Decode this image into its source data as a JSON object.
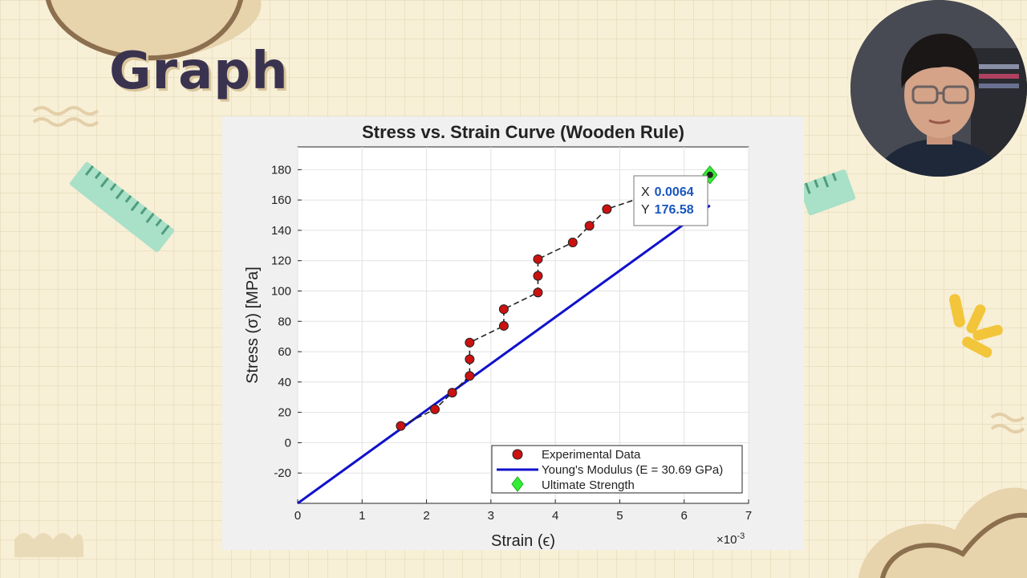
{
  "slide": {
    "title": "Graph"
  },
  "colors": {
    "background": "#f7efd6",
    "title_text": "#3a3350",
    "accent_mint": "#a8e0c8",
    "accent_yellow": "#f2c53a",
    "accent_tan": "#e7d3ac",
    "experimental_marker": "#cc1111",
    "youngs_line": "#1111cc",
    "ultimate_marker": "#33ee33"
  },
  "chart_data": {
    "type": "scatter",
    "title": "Stress vs. Strain Curve (Wooden Rule)",
    "xlabel": "Strain (ϵ)",
    "ylabel": "Stress (σ) [MPa]",
    "x_exponent_label": "×10",
    "x_exponent_power": "-3",
    "xlim": [
      0,
      0.007
    ],
    "ylim": [
      -40,
      195
    ],
    "x_ticks": [
      0,
      0.001,
      0.002,
      0.003,
      0.004,
      0.005,
      0.006,
      0.007
    ],
    "x_tick_labels": [
      "0",
      "1",
      "2",
      "3",
      "4",
      "5",
      "6",
      "7"
    ],
    "y_ticks": [
      -20,
      0,
      20,
      40,
      60,
      80,
      100,
      120,
      140,
      160,
      180
    ],
    "y_tick_labels": [
      "-20",
      "0",
      "20",
      "40",
      "60",
      "80",
      "100",
      "120",
      "140",
      "160",
      "180"
    ],
    "grid": true,
    "legend_position": "bottom-right",
    "series": [
      {
        "name": "Experimental Data",
        "kind": "markers",
        "x": [
          0.0016,
          0.00213,
          0.0024,
          0.00267,
          0.00267,
          0.00267,
          0.0032,
          0.0032,
          0.00373,
          0.00373,
          0.00373,
          0.00427,
          0.00453,
          0.0048,
          0.0064
        ],
        "y": [
          11,
          22,
          33,
          44,
          55,
          66,
          77,
          88,
          99,
          110,
          121,
          132,
          143,
          154,
          176.58
        ]
      },
      {
        "name": "Young's Modulus (E = 30.69 GPa)",
        "kind": "line",
        "x": [
          0.0,
          0.0064
        ],
        "y": [
          -40,
          156.4
        ]
      },
      {
        "name": "Ultimate Strength",
        "kind": "marker",
        "x": [
          0.0064
        ],
        "y": [
          176.58
        ]
      }
    ],
    "datatip": {
      "x_label": "X",
      "x_value": "0.0064",
      "y_label": "Y",
      "y_value": "176.58"
    }
  }
}
